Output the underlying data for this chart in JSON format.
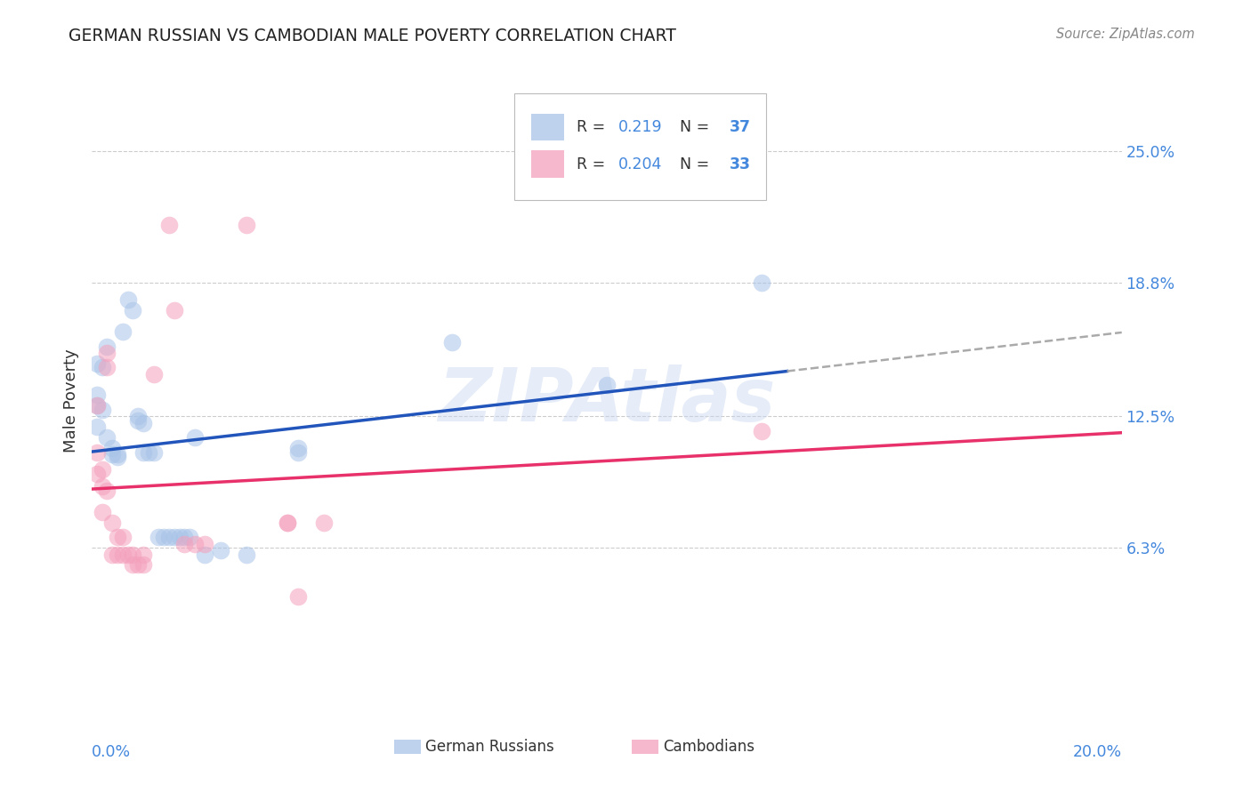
{
  "title": "GERMAN RUSSIAN VS CAMBODIAN MALE POVERTY CORRELATION CHART",
  "source": "Source: ZipAtlas.com",
  "ylabel": "Male Poverty",
  "ytick_labels": [
    "25.0%",
    "18.8%",
    "12.5%",
    "6.3%"
  ],
  "ytick_values": [
    0.25,
    0.188,
    0.125,
    0.063
  ],
  "xlim": [
    0.0,
    0.2
  ],
  "ylim": [
    -0.02,
    0.285
  ],
  "watermark": "ZIPAtlas",
  "legend_blue_R": "0.219",
  "legend_blue_N": "37",
  "legend_pink_R": "0.204",
  "legend_pink_N": "33",
  "blue_color": "#A8C4E8",
  "pink_color": "#F4A0BC",
  "blue_line_color": "#2255BB",
  "pink_line_color": "#E8306A",
  "gray_dash_color": "#AAAAAA",
  "blue_scatter": [
    [
      0.001,
      0.135
    ],
    [
      0.001,
      0.12
    ],
    [
      0.001,
      0.13
    ],
    [
      0.002,
      0.148
    ],
    [
      0.002,
      0.128
    ],
    [
      0.003,
      0.158
    ],
    [
      0.003,
      0.115
    ],
    [
      0.004,
      0.11
    ],
    [
      0.004,
      0.107
    ],
    [
      0.005,
      0.107
    ],
    [
      0.005,
      0.106
    ],
    [
      0.006,
      0.165
    ],
    [
      0.007,
      0.18
    ],
    [
      0.008,
      0.175
    ],
    [
      0.009,
      0.125
    ],
    [
      0.009,
      0.123
    ],
    [
      0.01,
      0.122
    ],
    [
      0.01,
      0.108
    ],
    [
      0.011,
      0.108
    ],
    [
      0.012,
      0.108
    ],
    [
      0.013,
      0.068
    ],
    [
      0.014,
      0.068
    ],
    [
      0.015,
      0.068
    ],
    [
      0.016,
      0.068
    ],
    [
      0.017,
      0.068
    ],
    [
      0.018,
      0.068
    ],
    [
      0.019,
      0.068
    ],
    [
      0.02,
      0.115
    ],
    [
      0.022,
      0.06
    ],
    [
      0.025,
      0.062
    ],
    [
      0.03,
      0.06
    ],
    [
      0.04,
      0.11
    ],
    [
      0.04,
      0.108
    ],
    [
      0.07,
      0.16
    ],
    [
      0.1,
      0.14
    ],
    [
      0.13,
      0.188
    ],
    [
      0.001,
      0.15
    ]
  ],
  "pink_scatter": [
    [
      0.001,
      0.13
    ],
    [
      0.001,
      0.108
    ],
    [
      0.001,
      0.098
    ],
    [
      0.002,
      0.1
    ],
    [
      0.002,
      0.092
    ],
    [
      0.002,
      0.08
    ],
    [
      0.003,
      0.155
    ],
    [
      0.003,
      0.148
    ],
    [
      0.003,
      0.09
    ],
    [
      0.004,
      0.075
    ],
    [
      0.004,
      0.06
    ],
    [
      0.005,
      0.068
    ],
    [
      0.005,
      0.06
    ],
    [
      0.006,
      0.068
    ],
    [
      0.006,
      0.06
    ],
    [
      0.007,
      0.06
    ],
    [
      0.008,
      0.06
    ],
    [
      0.008,
      0.055
    ],
    [
      0.009,
      0.055
    ],
    [
      0.01,
      0.055
    ],
    [
      0.01,
      0.06
    ],
    [
      0.012,
      0.145
    ],
    [
      0.015,
      0.215
    ],
    [
      0.016,
      0.175
    ],
    [
      0.018,
      0.065
    ],
    [
      0.02,
      0.065
    ],
    [
      0.022,
      0.065
    ],
    [
      0.03,
      0.215
    ],
    [
      0.038,
      0.075
    ],
    [
      0.038,
      0.075
    ],
    [
      0.04,
      0.04
    ],
    [
      0.045,
      0.075
    ],
    [
      0.13,
      0.118
    ]
  ]
}
